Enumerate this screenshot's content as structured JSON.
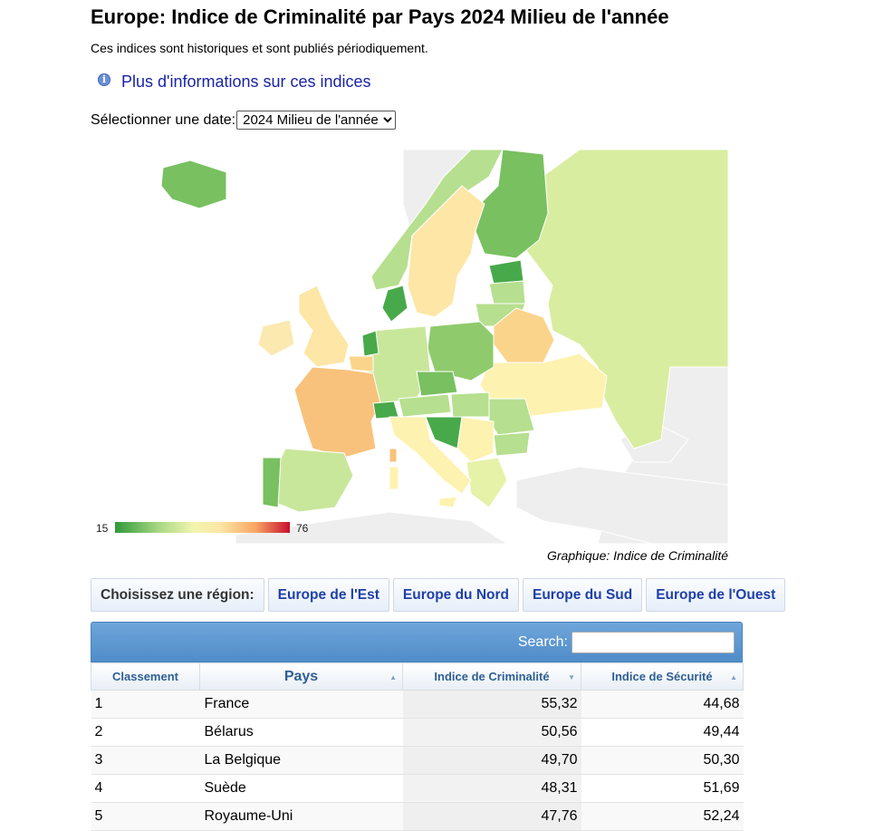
{
  "header": {
    "title": "Europe: Indice de Criminalité par Pays 2024 Milieu de l'année",
    "subtitle": "Ces indices sont historiques et sont publiés périodiquement.",
    "info_link": "Plus d'informations sur ces indices",
    "info_icon": "info-icon"
  },
  "date_selector": {
    "label": "Sélectionner une date:",
    "selected": "2024 Milieu de l'année"
  },
  "map": {
    "legend_min": "15",
    "legend_max": "76",
    "caption": "Graphique: Indice de Criminalité",
    "colors": {
      "water": "#ffffff",
      "no_data": "#eeeeee",
      "scale": [
        "#2e9a3b",
        "#78c060",
        "#b6df8f",
        "#e6f2a8",
        "#fff3b0",
        "#fdd38a",
        "#f8a865",
        "#e8492f",
        "#c8102e"
      ]
    }
  },
  "regions": {
    "label": "Choisissez une région:",
    "buttons": [
      "Europe de l'Est",
      "Europe du Nord",
      "Europe du Sud",
      "Europe de l'Ouest"
    ]
  },
  "table": {
    "search_label": "Search:",
    "search_value": "",
    "columns": [
      "Classement",
      "Pays",
      "Indice de Criminalité",
      "Indice de Sécurité"
    ],
    "rows": [
      [
        "1",
        "France",
        "55,32",
        "44,68"
      ],
      [
        "2",
        "Bélarus",
        "50,56",
        "49,44"
      ],
      [
        "3",
        "La Belgique",
        "49,70",
        "50,30"
      ],
      [
        "4",
        "Suède",
        "48,31",
        "51,69"
      ],
      [
        "5",
        "Royaume-Uni",
        "47,76",
        "52,24"
      ]
    ]
  }
}
